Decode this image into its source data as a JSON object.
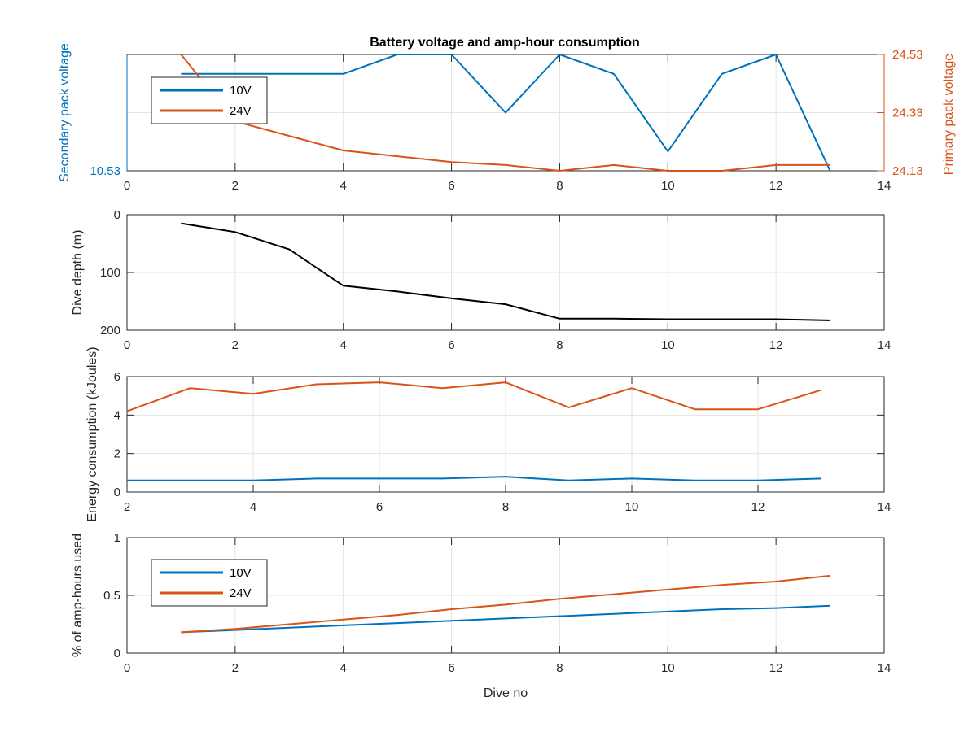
{
  "figure": {
    "title": "Battery voltage and amp-hour consumption"
  },
  "chart_data": [
    {
      "type": "line",
      "title": "Battery voltage and amp-hour consumption",
      "xlabel": "",
      "xlim": [
        0,
        14
      ],
      "xticks": [
        0,
        2,
        4,
        6,
        8,
        10,
        12,
        14
      ],
      "ylabel_left": "Secondary pack voltage",
      "ylim_left": [
        10.53,
        10.59
      ],
      "yticks_left": [
        10.53
      ],
      "ylabel_right": "Primary pack voltage",
      "ylim_right": [
        24.13,
        24.53
      ],
      "yticks_right": [
        24.13,
        24.33,
        24.53
      ],
      "grid": true,
      "legend": {
        "position": "top-left",
        "entries": [
          "10V",
          "24V"
        ]
      },
      "series": [
        {
          "name": "10V",
          "axis": "left",
          "color": "#0072BD",
          "x": [
            1,
            2,
            3,
            4,
            5,
            6,
            7,
            8,
            9,
            10,
            11,
            12,
            13
          ],
          "y": [
            10.58,
            10.58,
            10.58,
            10.58,
            10.59,
            10.59,
            10.56,
            10.59,
            10.58,
            10.54,
            10.58,
            10.59,
            10.53
          ]
        },
        {
          "name": "24V",
          "axis": "right",
          "color": "#D95319",
          "x": [
            1,
            2,
            3,
            4,
            5,
            6,
            7,
            8,
            9,
            10,
            11,
            12,
            13
          ],
          "y": [
            24.53,
            24.3,
            24.25,
            24.2,
            24.18,
            24.16,
            24.15,
            24.13,
            24.15,
            24.13,
            24.13,
            24.15,
            24.15
          ]
        }
      ]
    },
    {
      "type": "line",
      "xlabel": "",
      "ylabel": "Dive depth (m)",
      "xlim": [
        0,
        14
      ],
      "xticks": [
        0,
        2,
        4,
        6,
        8,
        10,
        12,
        14
      ],
      "ylim": [
        0,
        200
      ],
      "yticks": [
        0,
        100,
        200
      ],
      "y_reversed": true,
      "grid": true,
      "series": [
        {
          "color": "#000000",
          "x": [
            1,
            2,
            3,
            4,
            5,
            6,
            7,
            8,
            9,
            10,
            11,
            12,
            13
          ],
          "y": [
            15,
            30,
            60,
            123,
            133,
            145,
            155,
            180,
            180,
            181,
            181,
            181,
            183
          ]
        }
      ]
    },
    {
      "type": "line",
      "xlabel": "",
      "ylabel": "Energy consumption (kJoules)",
      "xlim": [
        2,
        14
      ],
      "xticks": [
        2,
        4,
        6,
        8,
        10,
        12,
        14
      ],
      "ylim": [
        0,
        6
      ],
      "yticks": [
        0,
        2,
        4,
        6
      ],
      "grid": true,
      "series": [
        {
          "color": "#D95319",
          "x": [
            2,
            3,
            4,
            5,
            6,
            7,
            8,
            9,
            10,
            11,
            12,
            13
          ],
          "y": [
            4.2,
            5.4,
            5.1,
            5.6,
            5.7,
            5.4,
            5.7,
            4.4,
            5.4,
            4.3,
            4.3,
            5.3
          ]
        },
        {
          "color": "#0072BD",
          "x": [
            2,
            3,
            4,
            5,
            6,
            7,
            8,
            9,
            10,
            11,
            12,
            13
          ],
          "y": [
            0.6,
            0.6,
            0.6,
            0.7,
            0.7,
            0.7,
            0.8,
            0.6,
            0.7,
            0.6,
            0.6,
            0.7
          ]
        }
      ]
    },
    {
      "type": "line",
      "xlabel": "Dive no",
      "ylabel": "% of amp-hours used",
      "xlim": [
        0,
        14
      ],
      "xticks": [
        0,
        2,
        4,
        6,
        8,
        10,
        12,
        14
      ],
      "ylim": [
        0,
        1
      ],
      "yticks": [
        0,
        0.5,
        1
      ],
      "grid": true,
      "legend": {
        "position": "left",
        "entries": [
          "10V",
          "24V"
        ]
      },
      "series": [
        {
          "name": "10V",
          "color": "#0072BD",
          "x": [
            1,
            2,
            3,
            4,
            5,
            6,
            7,
            8,
            9,
            10,
            11,
            12,
            13
          ],
          "y": [
            0.18,
            0.2,
            0.22,
            0.24,
            0.26,
            0.28,
            0.3,
            0.32,
            0.34,
            0.36,
            0.38,
            0.39,
            0.41
          ]
        },
        {
          "name": "24V",
          "color": "#D95319",
          "x": [
            1,
            2,
            3,
            4,
            5,
            6,
            7,
            8,
            9,
            10,
            11,
            12,
            13
          ],
          "y": [
            0.18,
            0.21,
            0.25,
            0.29,
            0.33,
            0.38,
            0.42,
            0.47,
            0.51,
            0.55,
            0.59,
            0.62,
            0.67
          ]
        }
      ]
    }
  ]
}
